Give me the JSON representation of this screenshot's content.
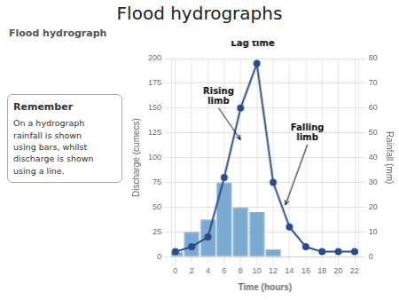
{
  "chart_data": {
    "type": "bar",
    "title": "Flood hydrographs",
    "subtitle": "Flood hydrograph",
    "text_box": [
      "Remember",
      "On a hydrograph",
      "rainfall is shown",
      "using bars, whilst",
      "discharge is shown",
      "using a line."
    ],
    "x_label": "Time (hours)",
    "y_label": "Discharge (cumecs)",
    "y2_label": "Rainfall (mm)",
    "series": [
      {
        "type": "bar",
        "axis": "y2",
        "color": "#7aaad0",
        "x": [
          0,
          2,
          4,
          6,
          8,
          10,
          12
        ],
        "values": [
          2,
          10,
          15,
          30,
          20,
          18,
          3
        ]
      },
      {
        "type": "line",
        "color": "#2a4a8a",
        "marker": "circle",
        "x": [
          0,
          2,
          4,
          6,
          8,
          10,
          12,
          14,
          16,
          18,
          20,
          22
        ],
        "values": [
          5,
          10,
          20,
          80,
          150,
          195,
          75,
          30,
          10,
          5,
          5,
          5
        ]
      }
    ],
    "xlim": [
      -0.5,
      22.5
    ],
    "xticks": [
      0,
      2,
      4,
      6,
      8,
      10,
      12,
      14,
      16,
      18,
      20,
      22
    ],
    "ylim": [
      0,
      200
    ],
    "yticks": [
      0,
      25,
      50,
      75,
      100,
      125,
      150,
      175,
      200
    ],
    "y2lim": [
      0,
      80
    ],
    "y2ticks": [
      0,
      10,
      20,
      30,
      40,
      50,
      60,
      70,
      80
    ],
    "grid": true,
    "annotations": [
      {
        "text": "Lag time",
        "x": 9.5,
        "y": 210
      },
      {
        "text": "Rising\nlimb",
        "x": 5.3,
        "y": 152,
        "target": [
          8.0,
          118
        ]
      },
      {
        "text": "Falling\nlimb",
        "x": 16.2,
        "y": 115,
        "target": [
          13.5,
          52
        ]
      }
    ]
  }
}
